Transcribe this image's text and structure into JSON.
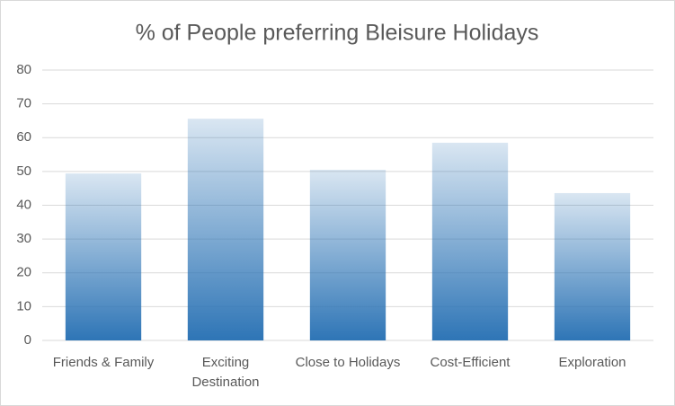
{
  "chart_data": {
    "type": "bar",
    "title": "% of People preferring Bleisure Holidays",
    "categories": [
      "Friends & Family",
      "Exciting Destination",
      "Close to Holidays",
      "Cost-Efficient",
      "Exploration"
    ],
    "values": [
      49.4,
      65.6,
      50.5,
      58.5,
      43.6
    ],
    "color": "#2e75b6",
    "ylim": [
      0,
      80
    ],
    "yticks": [
      0,
      10,
      20,
      30,
      40,
      50,
      60,
      70,
      80
    ],
    "grid": true
  }
}
